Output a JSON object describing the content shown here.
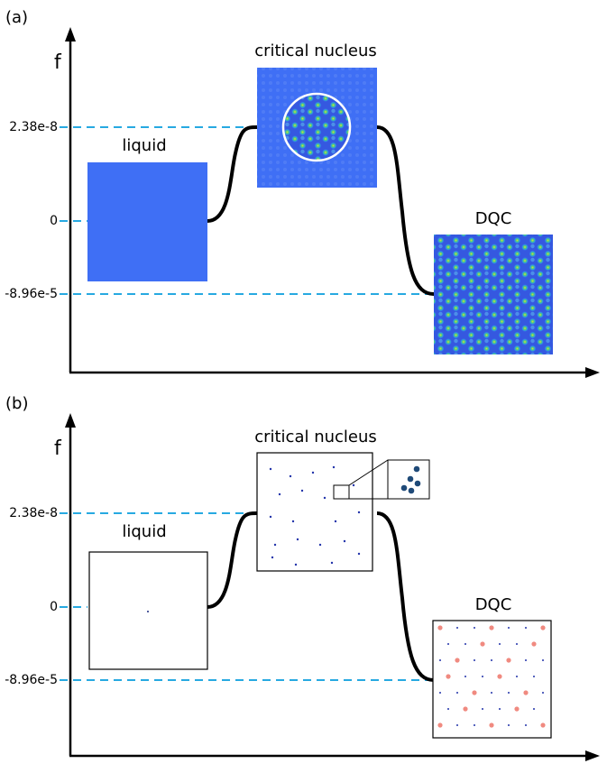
{
  "panels": [
    {
      "label": "(a)",
      "axis_label": "f",
      "ticks": [
        "2.38e-8",
        "0",
        "-8.96e-5"
      ],
      "states": [
        "liquid",
        "critical nucleus",
        "DQC"
      ]
    },
    {
      "label": "(b)",
      "axis_label": "f",
      "ticks": [
        "2.38e-8",
        "0",
        "-8.96e-5"
      ],
      "states": [
        "liquid",
        "critical nucleus",
        "DQC"
      ]
    }
  ]
}
